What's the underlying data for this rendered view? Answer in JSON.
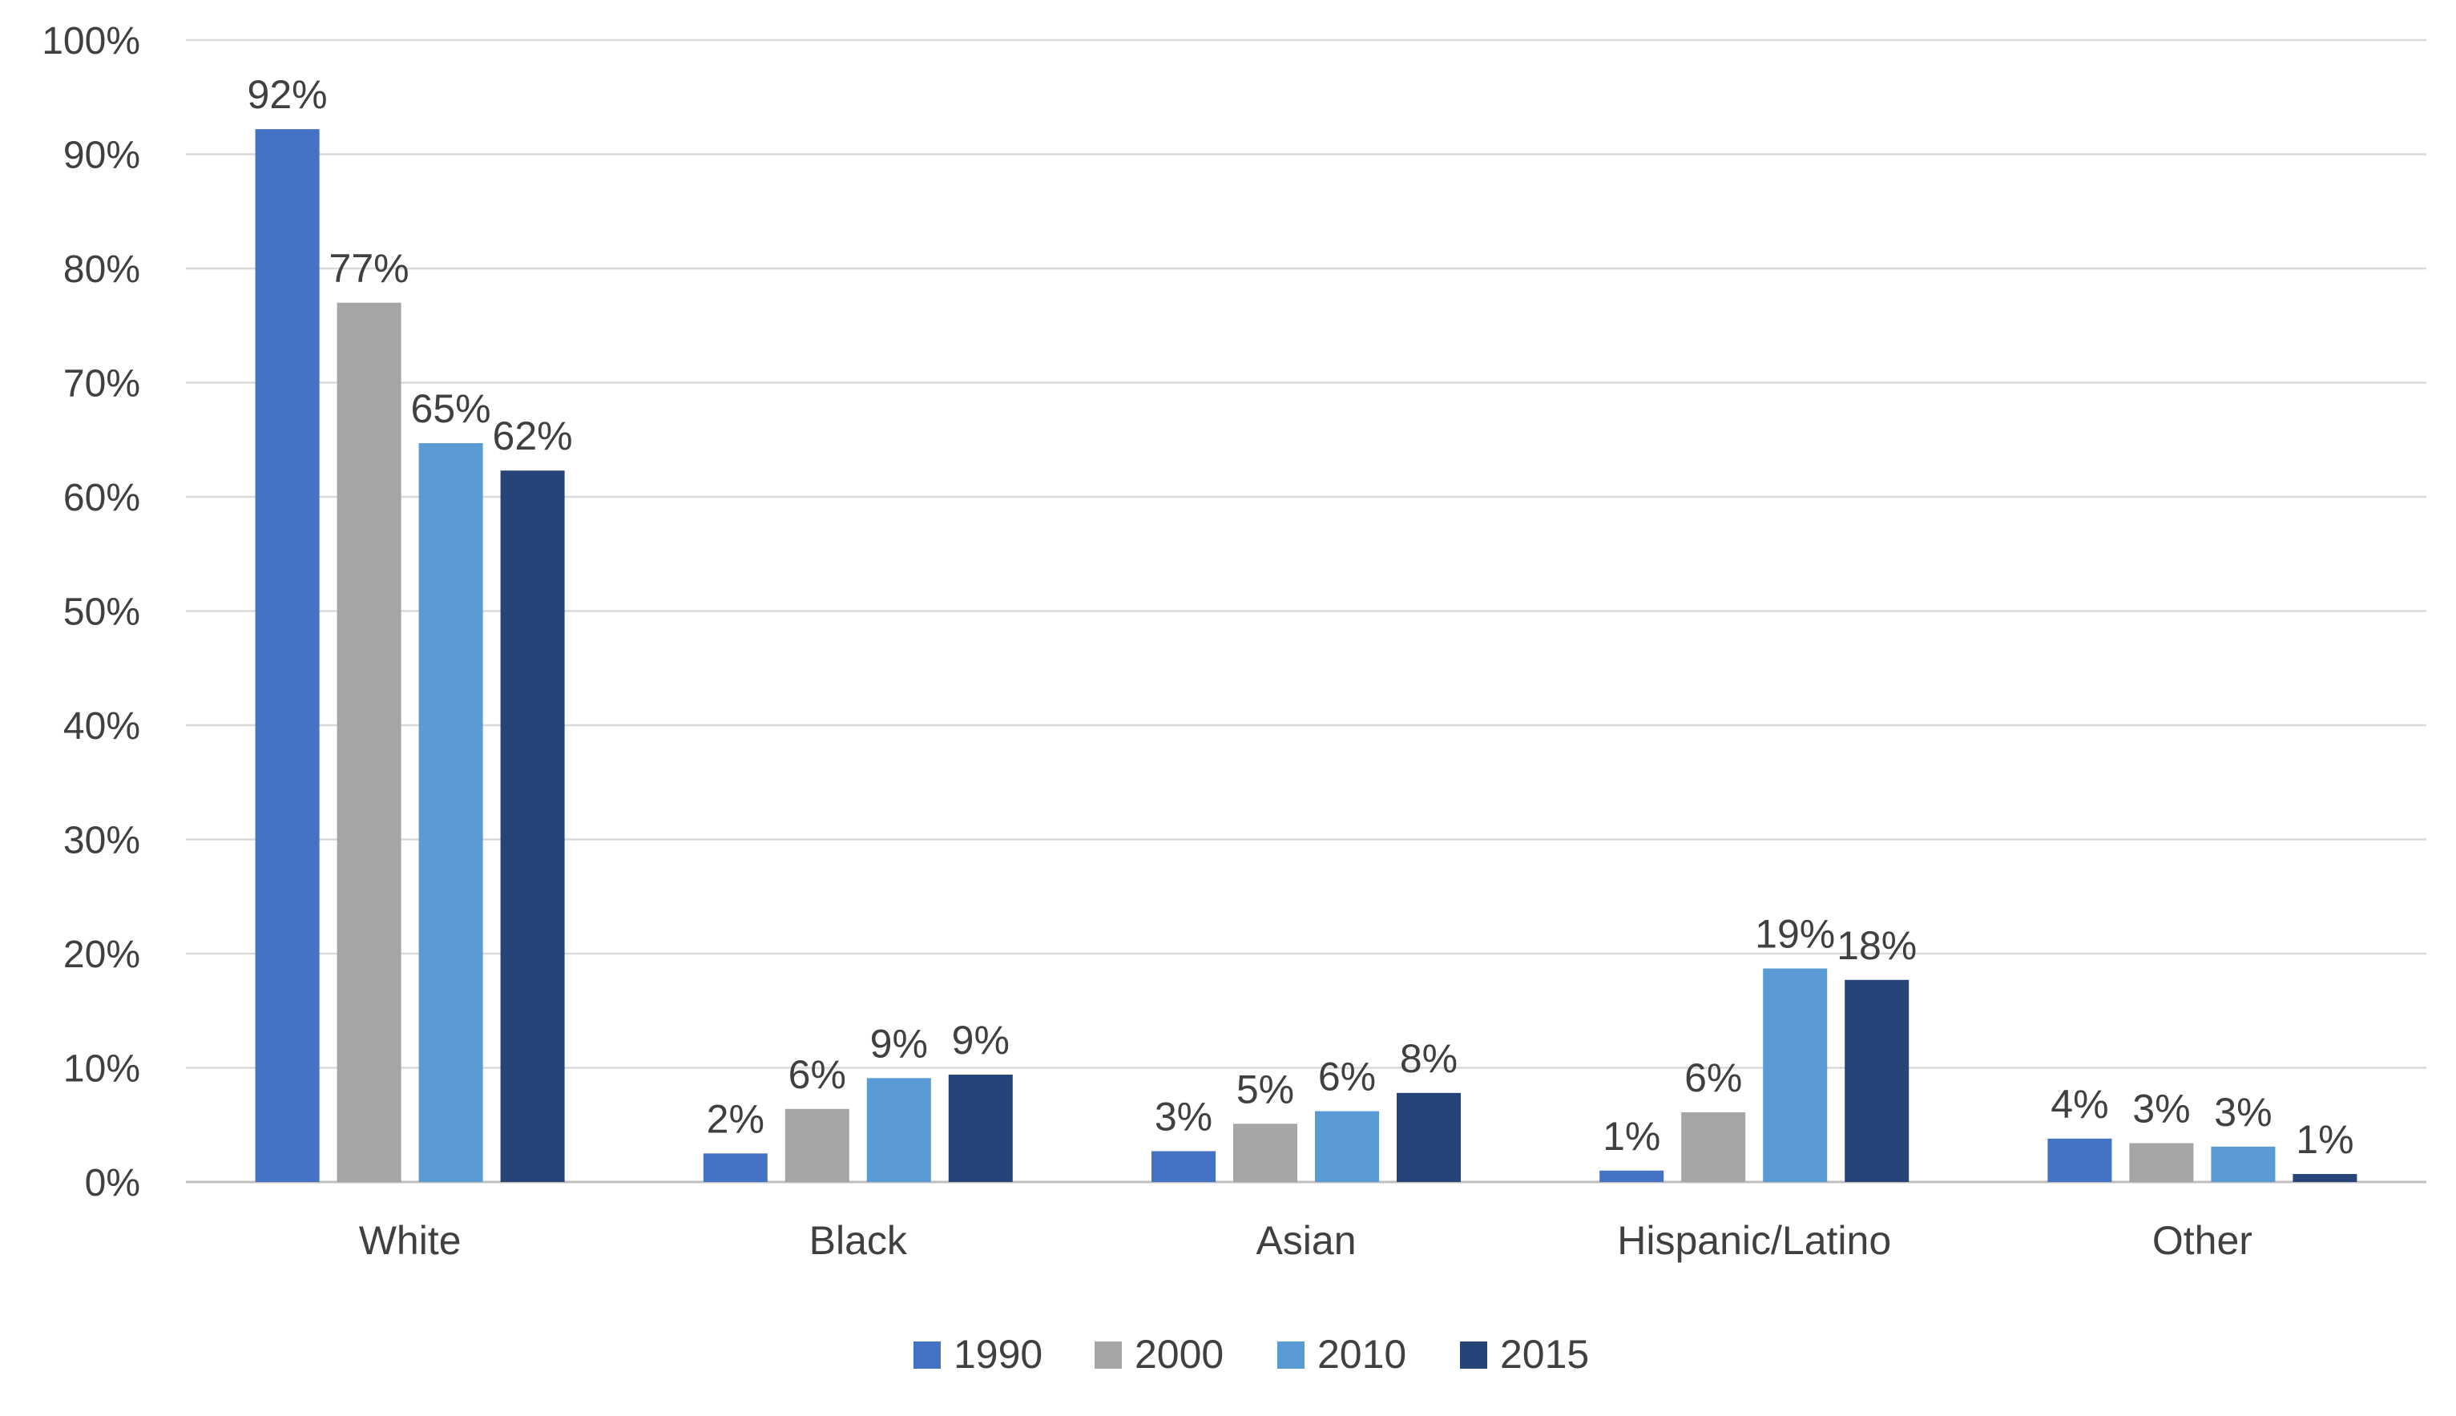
{
  "chart_data": {
    "type": "bar",
    "title": "",
    "xlabel": "",
    "ylabel": "",
    "ylim": [
      0,
      100
    ],
    "yticks": [
      "0%",
      "10%",
      "20%",
      "30%",
      "40%",
      "50%",
      "60%",
      "70%",
      "80%",
      "90%",
      "100%"
    ],
    "grid": true,
    "legend_position": "bottom",
    "categories": [
      "White",
      "Black",
      "Asian",
      "Hispanic/Latino",
      "Other"
    ],
    "series": [
      {
        "name": "1990",
        "color": "#4472C4",
        "values": [
          92.2,
          2.5,
          2.7,
          1.0,
          3.8
        ],
        "labels": [
          "92%",
          "2%",
          "3%",
          "1%",
          "4%"
        ]
      },
      {
        "name": "2000",
        "color": "#A5A5A5",
        "values": [
          77.0,
          6.4,
          5.1,
          6.1,
          3.4
        ],
        "labels": [
          "77%",
          "6%",
          "5%",
          "6%",
          "3%"
        ]
      },
      {
        "name": "2010",
        "color": "#5B9BD5",
        "values": [
          64.7,
          9.1,
          6.2,
          18.7,
          3.1
        ],
        "labels": [
          "65%",
          "9%",
          "6%",
          "19%",
          "3%"
        ]
      },
      {
        "name": "2015",
        "color": "#264478",
        "values": [
          62.3,
          9.4,
          7.8,
          17.7,
          0.7
        ],
        "labels": [
          "62%",
          "9%",
          "8%",
          "18%",
          "1%"
        ]
      }
    ]
  }
}
